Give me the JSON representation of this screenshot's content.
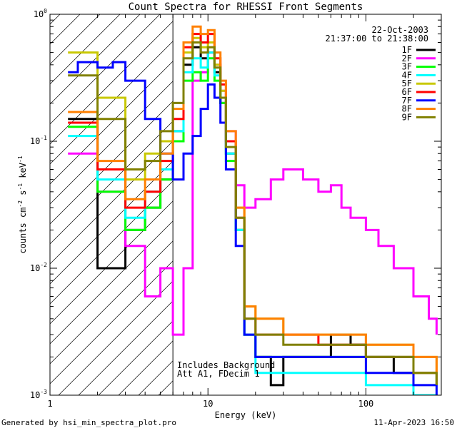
{
  "chart_data": {
    "type": "line",
    "title": "Count Spectra for RHESSI Front Segments",
    "xlabel": "Energy (keV)",
    "ylabel": "counts cm^-2 s^-1 keV^-1",
    "ylabel_parts": {
      "base": "counts cm",
      "exp1": "-2",
      "mid": " s",
      "exp2": "-1",
      "tail": " keV",
      "exp3": "-1"
    },
    "x_scale": "log",
    "y_scale": "log",
    "xlim": [
      1,
      300
    ],
    "ylim": [
      0.001,
      1.0
    ],
    "x_tick_labels": [
      {
        "value": 1,
        "label": "1"
      },
      {
        "value": 10,
        "label": "10"
      },
      {
        "value": 100,
        "label": "100"
      }
    ],
    "y_tick_labels": [
      {
        "value": 1.0,
        "base": "10",
        "exp": "0"
      },
      {
        "value": 0.1,
        "base": "10",
        "exp": "-1"
      },
      {
        "value": 0.01,
        "base": "10",
        "exp": "-2"
      },
      {
        "value": 0.001,
        "base": "10",
        "exp": "-3"
      }
    ],
    "threshold_line_energy": 6,
    "date": "22-Oct-2003",
    "time_range": "21:37:00 to 21:38:00",
    "annotations": [
      "Includes Background",
      "Att A1, FDecim 1"
    ],
    "series": [
      {
        "name": "1F",
        "color": "#000000",
        "energies": [
          1.3,
          2,
          3,
          4,
          5,
          6,
          7,
          8,
          9,
          10,
          11,
          12,
          13,
          15,
          17,
          20,
          25,
          30,
          40,
          60,
          80,
          100,
          150,
          200,
          280
        ],
        "values": [
          0.15,
          0.01,
          0.02,
          0.03,
          0.05,
          0.12,
          0.4,
          0.55,
          0.45,
          0.5,
          0.35,
          0.2,
          0.08,
          0.02,
          0.003,
          0.002,
          0.0012,
          0.002,
          0.002,
          0.003,
          0.0025,
          0.002,
          0.0015,
          0.001,
          0.001
        ]
      },
      {
        "name": "2F",
        "color": "#ff00ff",
        "energies": [
          1.3,
          2,
          3,
          4,
          5,
          6,
          7,
          8,
          9,
          10,
          11,
          12,
          13,
          15,
          17,
          20,
          25,
          30,
          40,
          50,
          60,
          70,
          80,
          100,
          120,
          150,
          200,
          250,
          280
        ],
        "values": [
          0.08,
          0.04,
          0.015,
          0.006,
          0.01,
          0.003,
          0.01,
          0.3,
          0.35,
          0.5,
          0.4,
          0.25,
          0.12,
          0.045,
          0.03,
          0.035,
          0.05,
          0.06,
          0.05,
          0.04,
          0.045,
          0.03,
          0.025,
          0.02,
          0.015,
          0.01,
          0.006,
          0.004,
          0.003
        ]
      },
      {
        "name": "3F",
        "color": "#00ff00",
        "energies": [
          1.3,
          2,
          3,
          4,
          5,
          6,
          7,
          8,
          9,
          10,
          11,
          12,
          13,
          15,
          17,
          20,
          30,
          50,
          100,
          200,
          280
        ],
        "values": [
          0.13,
          0.04,
          0.02,
          0.03,
          0.05,
          0.1,
          0.3,
          0.35,
          0.3,
          0.45,
          0.3,
          0.2,
          0.07,
          0.02,
          0.003,
          0.002,
          0.002,
          0.002,
          0.002,
          0.0015,
          0.0012
        ]
      },
      {
        "name": "4F",
        "color": "#00ffff",
        "energies": [
          1.3,
          2,
          3,
          4,
          5,
          6,
          7,
          8,
          9,
          10,
          11,
          12,
          13,
          15,
          17,
          20,
          30,
          50,
          100,
          200,
          280
        ],
        "values": [
          0.11,
          0.05,
          0.025,
          0.04,
          0.06,
          0.12,
          0.35,
          0.45,
          0.38,
          0.5,
          0.33,
          0.22,
          0.08,
          0.02,
          0.003,
          0.0015,
          0.0015,
          0.0015,
          0.0012,
          0.001,
          0.001
        ]
      },
      {
        "name": "5F",
        "color": "#c8c800",
        "energies": [
          1.3,
          2,
          3,
          4,
          5,
          6,
          7,
          8,
          9,
          10,
          11,
          12,
          13,
          15,
          17,
          20,
          30,
          50,
          100,
          200,
          280
        ],
        "values": [
          0.5,
          0.22,
          0.05,
          0.08,
          0.1,
          0.2,
          0.5,
          0.65,
          0.55,
          0.6,
          0.4,
          0.25,
          0.1,
          0.03,
          0.005,
          0.004,
          0.003,
          0.003,
          0.0025,
          0.002,
          0.0015
        ]
      },
      {
        "name": "6F",
        "color": "#ff0000",
        "energies": [
          1.3,
          2,
          3,
          4,
          5,
          6,
          7,
          8,
          9,
          10,
          11,
          12,
          13,
          15,
          17,
          20,
          30,
          50,
          100,
          200,
          280
        ],
        "values": [
          0.14,
          0.06,
          0.03,
          0.04,
          0.07,
          0.15,
          0.55,
          0.7,
          0.6,
          0.7,
          0.45,
          0.28,
          0.1,
          0.025,
          0.004,
          0.003,
          0.003,
          0.0025,
          0.002,
          0.0015,
          0.0012
        ]
      },
      {
        "name": "7F",
        "color": "#0000ff",
        "energies": [
          1.3,
          1.5,
          2,
          2.5,
          3,
          4,
          5,
          6,
          7,
          8,
          9,
          10,
          11,
          12,
          13,
          15,
          17,
          20,
          30,
          50,
          100,
          200,
          280
        ],
        "values": [
          0.35,
          0.42,
          0.38,
          0.42,
          0.3,
          0.15,
          0.08,
          0.05,
          0.08,
          0.11,
          0.18,
          0.28,
          0.22,
          0.14,
          0.06,
          0.015,
          0.003,
          0.002,
          0.002,
          0.002,
          0.0015,
          0.0012,
          0.001
        ]
      },
      {
        "name": "8F",
        "color": "#ff8000",
        "energies": [
          1.3,
          2,
          3,
          4,
          5,
          6,
          7,
          8,
          9,
          10,
          11,
          12,
          13,
          15,
          17,
          20,
          30,
          50,
          100,
          200,
          280
        ],
        "values": [
          0.17,
          0.07,
          0.035,
          0.05,
          0.08,
          0.18,
          0.6,
          0.8,
          0.7,
          0.75,
          0.5,
          0.3,
          0.12,
          0.03,
          0.005,
          0.004,
          0.003,
          0.003,
          0.0025,
          0.002,
          0.0015
        ]
      },
      {
        "name": "9F",
        "color": "#808000",
        "energies": [
          1.3,
          2,
          3,
          4,
          5,
          6,
          7,
          8,
          9,
          10,
          11,
          12,
          13,
          15,
          17,
          20,
          30,
          50,
          100,
          200,
          280
        ],
        "values": [
          0.33,
          0.15,
          0.06,
          0.07,
          0.12,
          0.2,
          0.45,
          0.6,
          0.5,
          0.55,
          0.38,
          0.22,
          0.09,
          0.025,
          0.004,
          0.003,
          0.0025,
          0.0025,
          0.002,
          0.0015,
          0.0012
        ]
      }
    ]
  },
  "footer": {
    "generated_by": "Generated by hsi_min_spectra_plot.pro",
    "timestamp": "11-Apr-2023 16:50"
  }
}
